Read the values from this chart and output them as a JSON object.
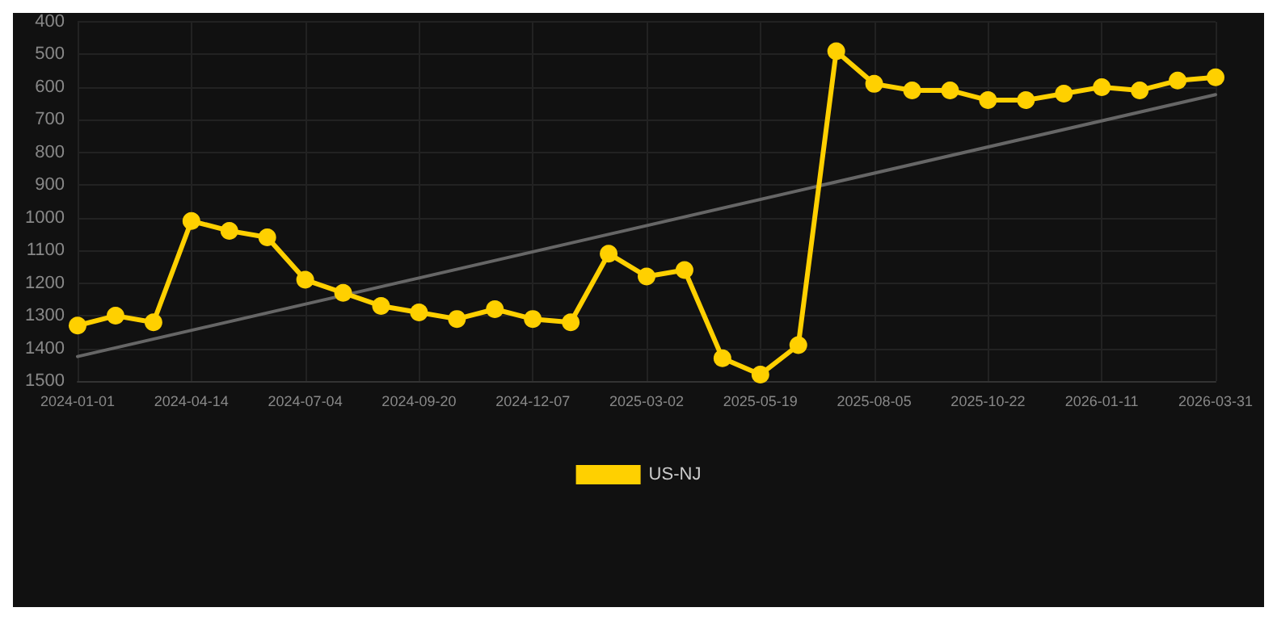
{
  "chart_data": {
    "type": "line",
    "categories": [
      "2024-01-01",
      null,
      null,
      "2024-04-14",
      null,
      null,
      "2024-07-04",
      null,
      null,
      "2024-09-20",
      null,
      null,
      "2024-12-07",
      null,
      null,
      "2025-03-02",
      null,
      null,
      "2025-05-19",
      null,
      null,
      "2025-08-05",
      null,
      null,
      "2025-10-22",
      null,
      null,
      "2026-01-11",
      null,
      null,
      "2026-03-31"
    ],
    "series": [
      {
        "name": "US-NJ",
        "color": "#ffd000",
        "marker": "circle",
        "values": [
          1330,
          1300,
          1320,
          1010,
          1040,
          1060,
          1190,
          1230,
          1270,
          1290,
          1310,
          1280,
          1310,
          1320,
          1110,
          1180,
          1160,
          1430,
          1480,
          1390,
          490,
          590,
          610,
          610,
          640,
          640,
          620,
          600,
          610,
          580,
          570
        ]
      },
      {
        "type": "line",
        "color": "#666666",
        "marker": "none",
        "values": [
          1425,
          null,
          null,
          null,
          null,
          null,
          null,
          null,
          null,
          null,
          null,
          null,
          null,
          null,
          null,
          null,
          null,
          null,
          null,
          null,
          null,
          null,
          null,
          null,
          null,
          null,
          null,
          null,
          null,
          null,
          623
        ]
      }
    ],
    "ylim": [
      1500,
      400
    ],
    "yticks": [
      400,
      500,
      600,
      700,
      800,
      900,
      1000,
      1100,
      1200,
      1300,
      1400,
      1500
    ],
    "grid": true,
    "legend": "bottom"
  }
}
